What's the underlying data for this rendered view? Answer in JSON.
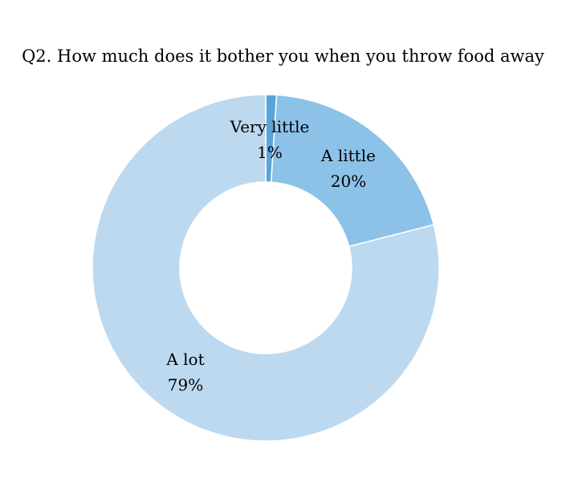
{
  "chart_data": {
    "type": "pie",
    "title": "Q2. How much does it bother you when you throw food away",
    "donut": true,
    "categories": [
      "Very little",
      "A little",
      "A lot"
    ],
    "values": [
      1,
      20,
      79
    ],
    "value_labels": [
      "1%",
      "20%",
      "79%"
    ],
    "colors": [
      "#5ba3d8",
      "#8cc2e8",
      "#bcd9f0"
    ],
    "start_angle_deg": 0,
    "direction": "clockwise"
  }
}
